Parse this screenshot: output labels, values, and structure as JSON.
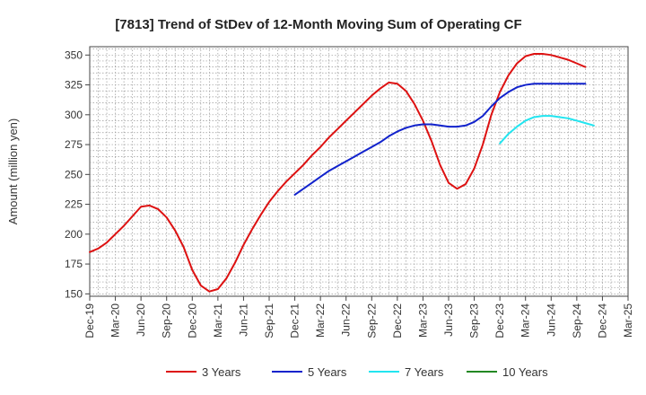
{
  "chart_data": {
    "type": "line",
    "title": "[7813]  Trend of StDev of 12-Month Moving Sum of Operating CF",
    "xlabel": "",
    "ylabel": "Amount (million yen)",
    "ylim": [
      148,
      357
    ],
    "yticks": [
      150,
      175,
      200,
      225,
      250,
      275,
      300,
      325,
      350
    ],
    "xticks": [
      "Dec-19",
      "Mar-20",
      "Jun-20",
      "Sep-20",
      "Dec-20",
      "Mar-21",
      "Jun-21",
      "Sep-21",
      "Dec-21",
      "Mar-22",
      "Jun-22",
      "Sep-22",
      "Dec-22",
      "Mar-23",
      "Jun-23",
      "Sep-23",
      "Dec-23",
      "Mar-24",
      "Jun-24",
      "Sep-24",
      "Dec-24",
      "Mar-25"
    ],
    "grid": true,
    "legend_position": "bottom",
    "series": [
      {
        "name": "3 Years",
        "color": "#dd1111",
        "start_index": 0,
        "values": [
          185,
          188,
          193,
          200,
          207,
          215,
          223,
          224,
          221,
          214,
          203,
          189,
          170,
          157,
          152,
          154,
          163,
          176,
          191,
          204,
          216,
          227,
          236,
          244,
          251,
          258,
          266,
          273,
          281,
          288,
          295,
          302,
          309,
          316,
          322,
          327,
          326,
          320,
          309,
          295,
          278,
          258,
          243,
          238,
          242,
          255,
          275,
          300,
          319,
          333,
          343,
          349,
          351,
          351,
          350,
          348,
          346,
          343,
          340
        ]
      },
      {
        "name": "5 Years",
        "color": "#1122cc",
        "start_index": 24,
        "values": [
          233,
          238,
          243,
          248,
          253,
          257,
          261,
          265,
          269,
          273,
          277,
          282,
          286,
          289,
          291,
          292,
          292,
          291,
          290,
          290,
          291,
          294,
          299,
          307,
          314,
          319,
          323,
          325,
          326,
          326,
          326,
          326,
          326,
          326,
          326
        ]
      },
      {
        "name": "7 Years",
        "color": "#22e5f0",
        "start_index": 48,
        "values": [
          276,
          284,
          290,
          295,
          298,
          299,
          299,
          298,
          297,
          295,
          293,
          291
        ]
      },
      {
        "name": "10 Years",
        "color": "#228822",
        "start_index": null,
        "values": []
      }
    ]
  }
}
